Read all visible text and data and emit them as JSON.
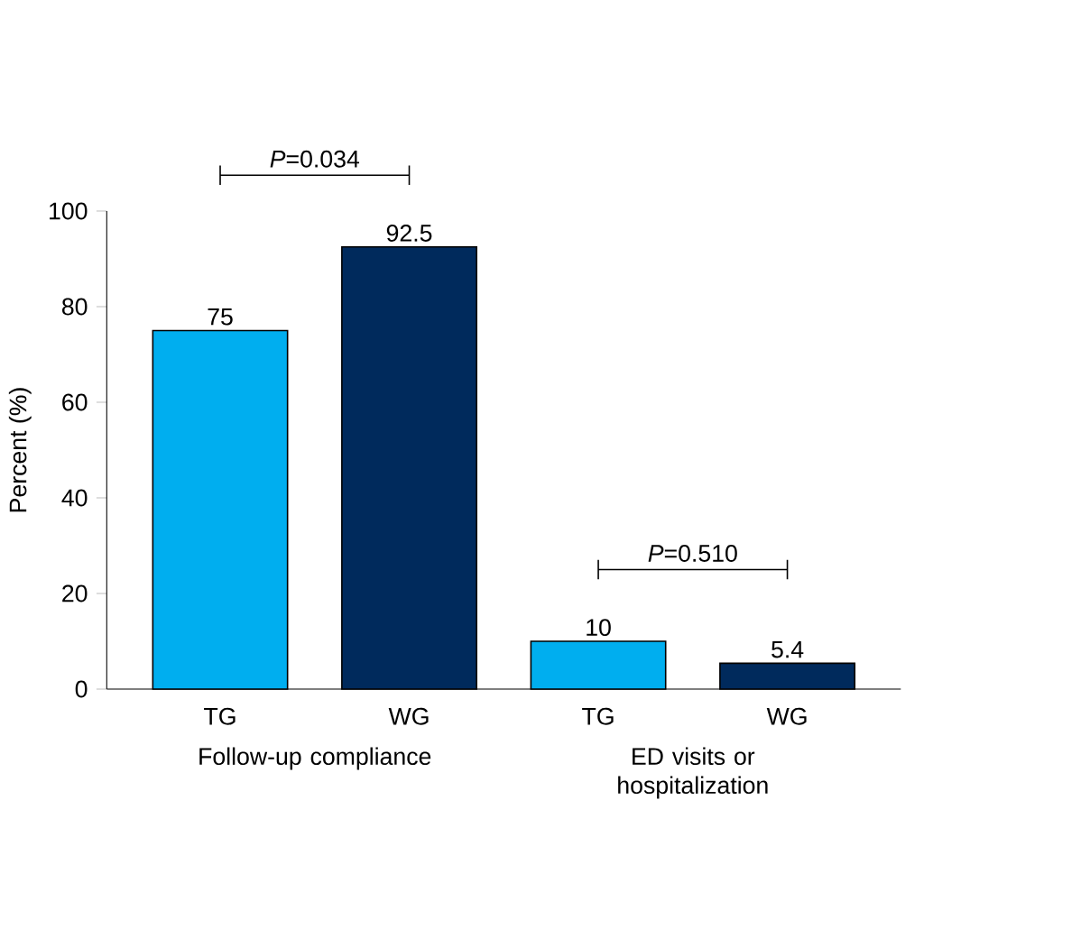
{
  "chart_data": {
    "type": "bar",
    "categories": [
      "TG",
      "WG",
      "TG",
      "WG"
    ],
    "values": [
      75,
      92.5,
      10,
      5.4
    ],
    "colors": [
      "#00aeef",
      "#002a5c",
      "#00aeef",
      "#002a5c"
    ],
    "ylabel": "Percent (%)",
    "ylim": [
      0,
      100
    ],
    "yticks": [
      0,
      20,
      40,
      60,
      80,
      100
    ],
    "data_labels": true,
    "annotations": [
      "*P*=0.034",
      "*P*=0.510",
      "Follow-up compliance",
      "ED visits or hospitalization"
    ]
  }
}
